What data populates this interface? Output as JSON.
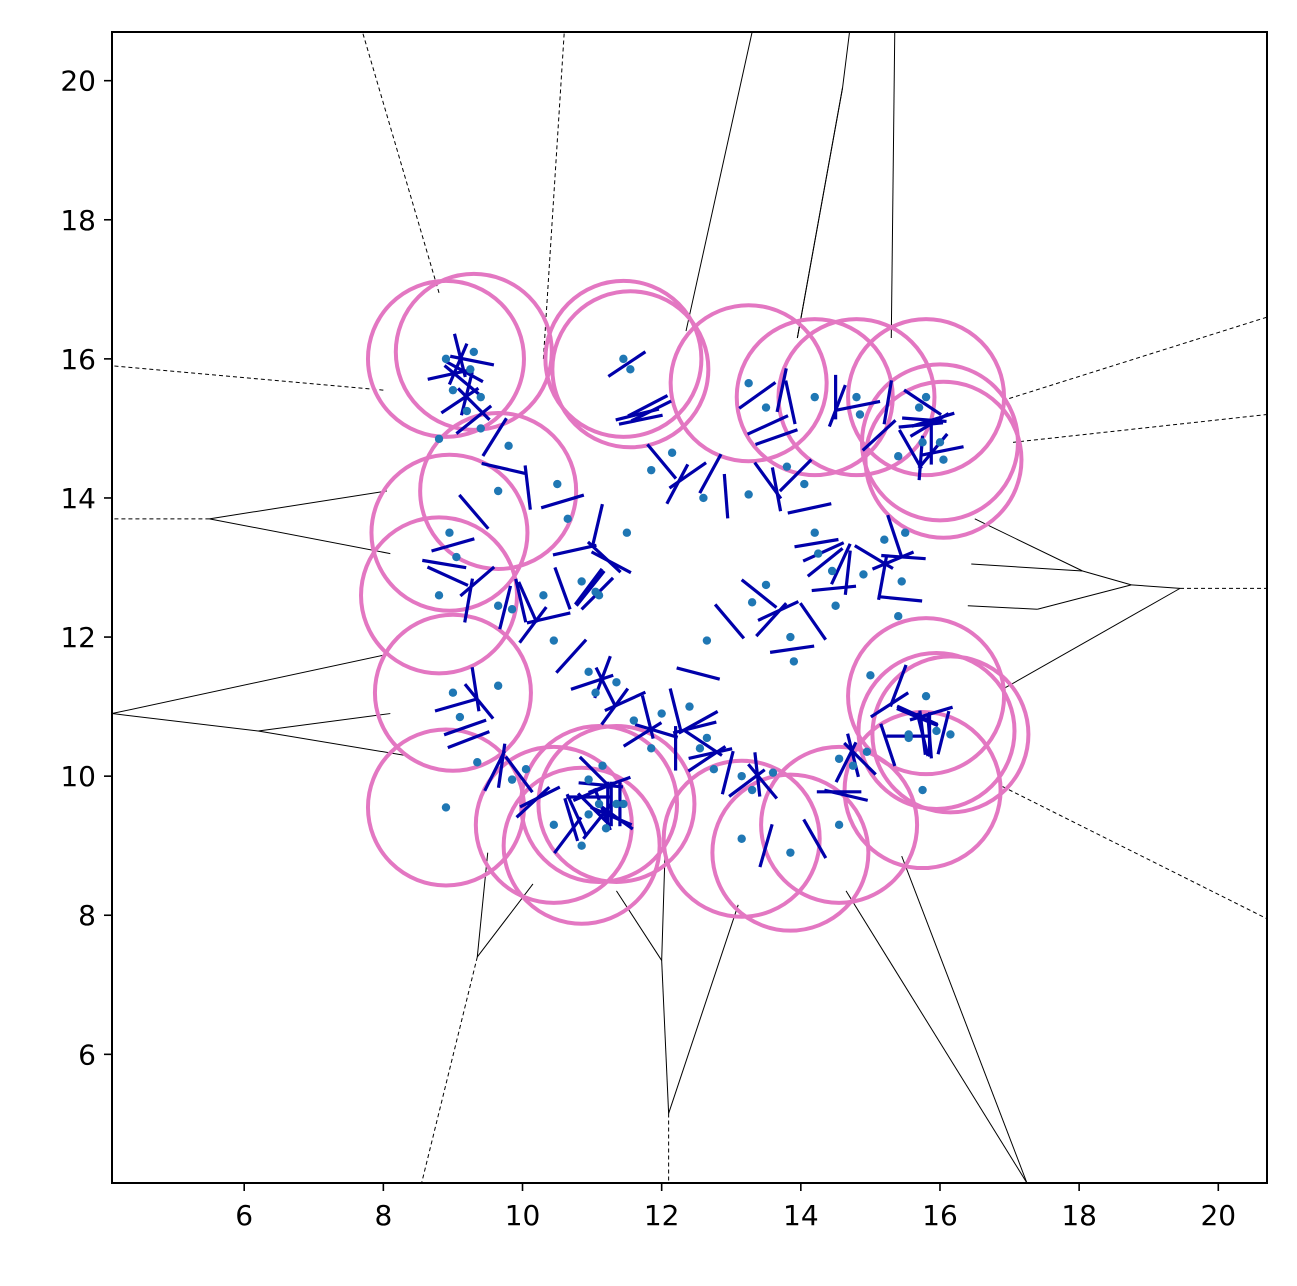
{
  "chart_data": {
    "type": "scatter",
    "title": "",
    "xlabel": "",
    "ylabel": "",
    "xlim": [
      4.1,
      20.7
    ],
    "ylim": [
      4.15,
      20.7
    ],
    "xticks": [
      6,
      8,
      10,
      12,
      14,
      16,
      18,
      20
    ],
    "yticks": [
      6,
      8,
      10,
      12,
      14,
      16,
      18,
      20
    ],
    "xtick_labels": [
      "6",
      "8",
      "10",
      "12",
      "14",
      "16",
      "18",
      "20"
    ],
    "ytick_labels": [
      "6",
      "8",
      "10",
      "12",
      "14",
      "16",
      "18",
      "20"
    ],
    "grid": false,
    "legend": "none",
    "colors": {
      "points": "#1f77b4",
      "voronoi_edges": "#000000",
      "clipped_cells": "#0000aa",
      "boundary": "#e377c2"
    },
    "points": [
      [
        8.9,
        16.0
      ],
      [
        9.3,
        16.1
      ],
      [
        9.25,
        15.85
      ],
      [
        9.0,
        15.55
      ],
      [
        9.4,
        15.45
      ],
      [
        9.2,
        15.25
      ],
      [
        9.4,
        15.0
      ],
      [
        8.8,
        14.85
      ],
      [
        9.8,
        14.75
      ],
      [
        11.45,
        16.0
      ],
      [
        11.55,
        15.85
      ],
      [
        10.5,
        14.2
      ],
      [
        10.65,
        13.7
      ],
      [
        11.5,
        13.5
      ],
      [
        11.85,
        14.4
      ],
      [
        12.15,
        14.65
      ],
      [
        12.6,
        14.0
      ],
      [
        13.25,
        15.65
      ],
      [
        13.5,
        15.3
      ],
      [
        14.2,
        15.45
      ],
      [
        14.8,
        15.45
      ],
      [
        14.85,
        15.2
      ],
      [
        13.8,
        14.45
      ],
      [
        14.05,
        14.2
      ],
      [
        13.25,
        14.05
      ],
      [
        15.8,
        15.45
      ],
      [
        15.7,
        15.3
      ],
      [
        15.75,
        14.8
      ],
      [
        16.0,
        14.8
      ],
      [
        16.05,
        14.55
      ],
      [
        15.4,
        14.6
      ],
      [
        8.95,
        13.5
      ],
      [
        9.05,
        13.15
      ],
      [
        9.65,
        14.1
      ],
      [
        8.8,
        12.6
      ],
      [
        9.65,
        12.45
      ],
      [
        9.85,
        12.4
      ],
      [
        10.3,
        12.6
      ],
      [
        10.45,
        11.95
      ],
      [
        10.85,
        12.8
      ],
      [
        11.05,
        12.65
      ],
      [
        11.1,
        12.6
      ],
      [
        14.2,
        13.5
      ],
      [
        14.25,
        13.2
      ],
      [
        14.45,
        12.95
      ],
      [
        14.9,
        12.9
      ],
      [
        15.2,
        13.4
      ],
      [
        15.5,
        13.5
      ],
      [
        15.45,
        12.8
      ],
      [
        13.5,
        12.75
      ],
      [
        13.3,
        12.5
      ],
      [
        14.5,
        12.45
      ],
      [
        15.4,
        12.3
      ],
      [
        12.65,
        11.95
      ],
      [
        13.85,
        12.0
      ],
      [
        13.9,
        11.65
      ],
      [
        15.0,
        11.45
      ],
      [
        15.8,
        11.15
      ],
      [
        9.0,
        11.2
      ],
      [
        9.1,
        10.85
      ],
      [
        9.65,
        11.3
      ],
      [
        10.95,
        11.5
      ],
      [
        11.05,
        11.2
      ],
      [
        11.35,
        11.35
      ],
      [
        11.6,
        10.8
      ],
      [
        12.0,
        10.9
      ],
      [
        12.4,
        11.0
      ],
      [
        11.85,
        10.4
      ],
      [
        12.55,
        10.4
      ],
      [
        12.65,
        10.55
      ],
      [
        12.75,
        10.1
      ],
      [
        9.35,
        10.2
      ],
      [
        9.85,
        9.95
      ],
      [
        10.05,
        10.1
      ],
      [
        11.15,
        10.15
      ],
      [
        10.95,
        9.95
      ],
      [
        13.15,
        10.0
      ],
      [
        13.6,
        10.05
      ],
      [
        13.3,
        9.8
      ],
      [
        14.55,
        10.25
      ],
      [
        14.75,
        10.15
      ],
      [
        14.95,
        10.35
      ],
      [
        15.55,
        10.55
      ],
      [
        15.55,
        10.6
      ],
      [
        15.95,
        10.65
      ],
      [
        16.15,
        10.6
      ],
      [
        8.9,
        9.55
      ],
      [
        10.45,
        9.3
      ],
      [
        10.95,
        9.45
      ],
      [
        11.1,
        9.6
      ],
      [
        11.35,
        9.6
      ],
      [
        11.45,
        9.6
      ],
      [
        11.2,
        9.25
      ],
      [
        10.85,
        9.0
      ],
      [
        13.15,
        9.1
      ],
      [
        13.85,
        8.9
      ],
      [
        14.55,
        9.3
      ],
      [
        15.75,
        9.8
      ]
    ]
  }
}
